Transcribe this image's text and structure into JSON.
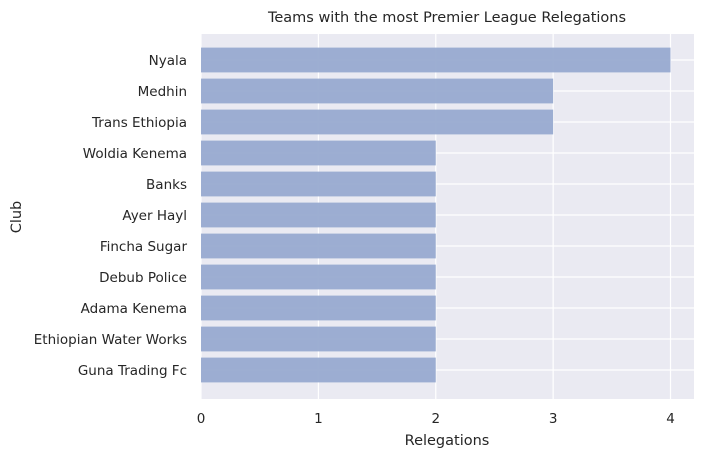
{
  "chart_data": {
    "type": "bar",
    "orientation": "horizontal",
    "title": "Teams with the most Premier League Relegations",
    "xlabel": "Relegations",
    "ylabel": "Club",
    "categories": [
      "Nyala",
      "Medhin",
      "Trans Ethiopia",
      "Woldia Kenema",
      "Banks",
      "Ayer Hayl",
      "Fincha Sugar",
      "Debub Police",
      "Adama Kenema",
      "Ethiopian Water Works",
      "Guna Trading Fc"
    ],
    "values": [
      4,
      3,
      3,
      2,
      2,
      2,
      2,
      2,
      2,
      2,
      2
    ],
    "xlim": [
      0,
      4.2
    ],
    "xticks": [
      "0",
      "1",
      "2",
      "3",
      "4"
    ],
    "grid": true,
    "colors": {
      "bar": "#98aad0",
      "plot_background": "#eaeaf2",
      "grid": "#ffffff",
      "text": "#262626"
    }
  }
}
